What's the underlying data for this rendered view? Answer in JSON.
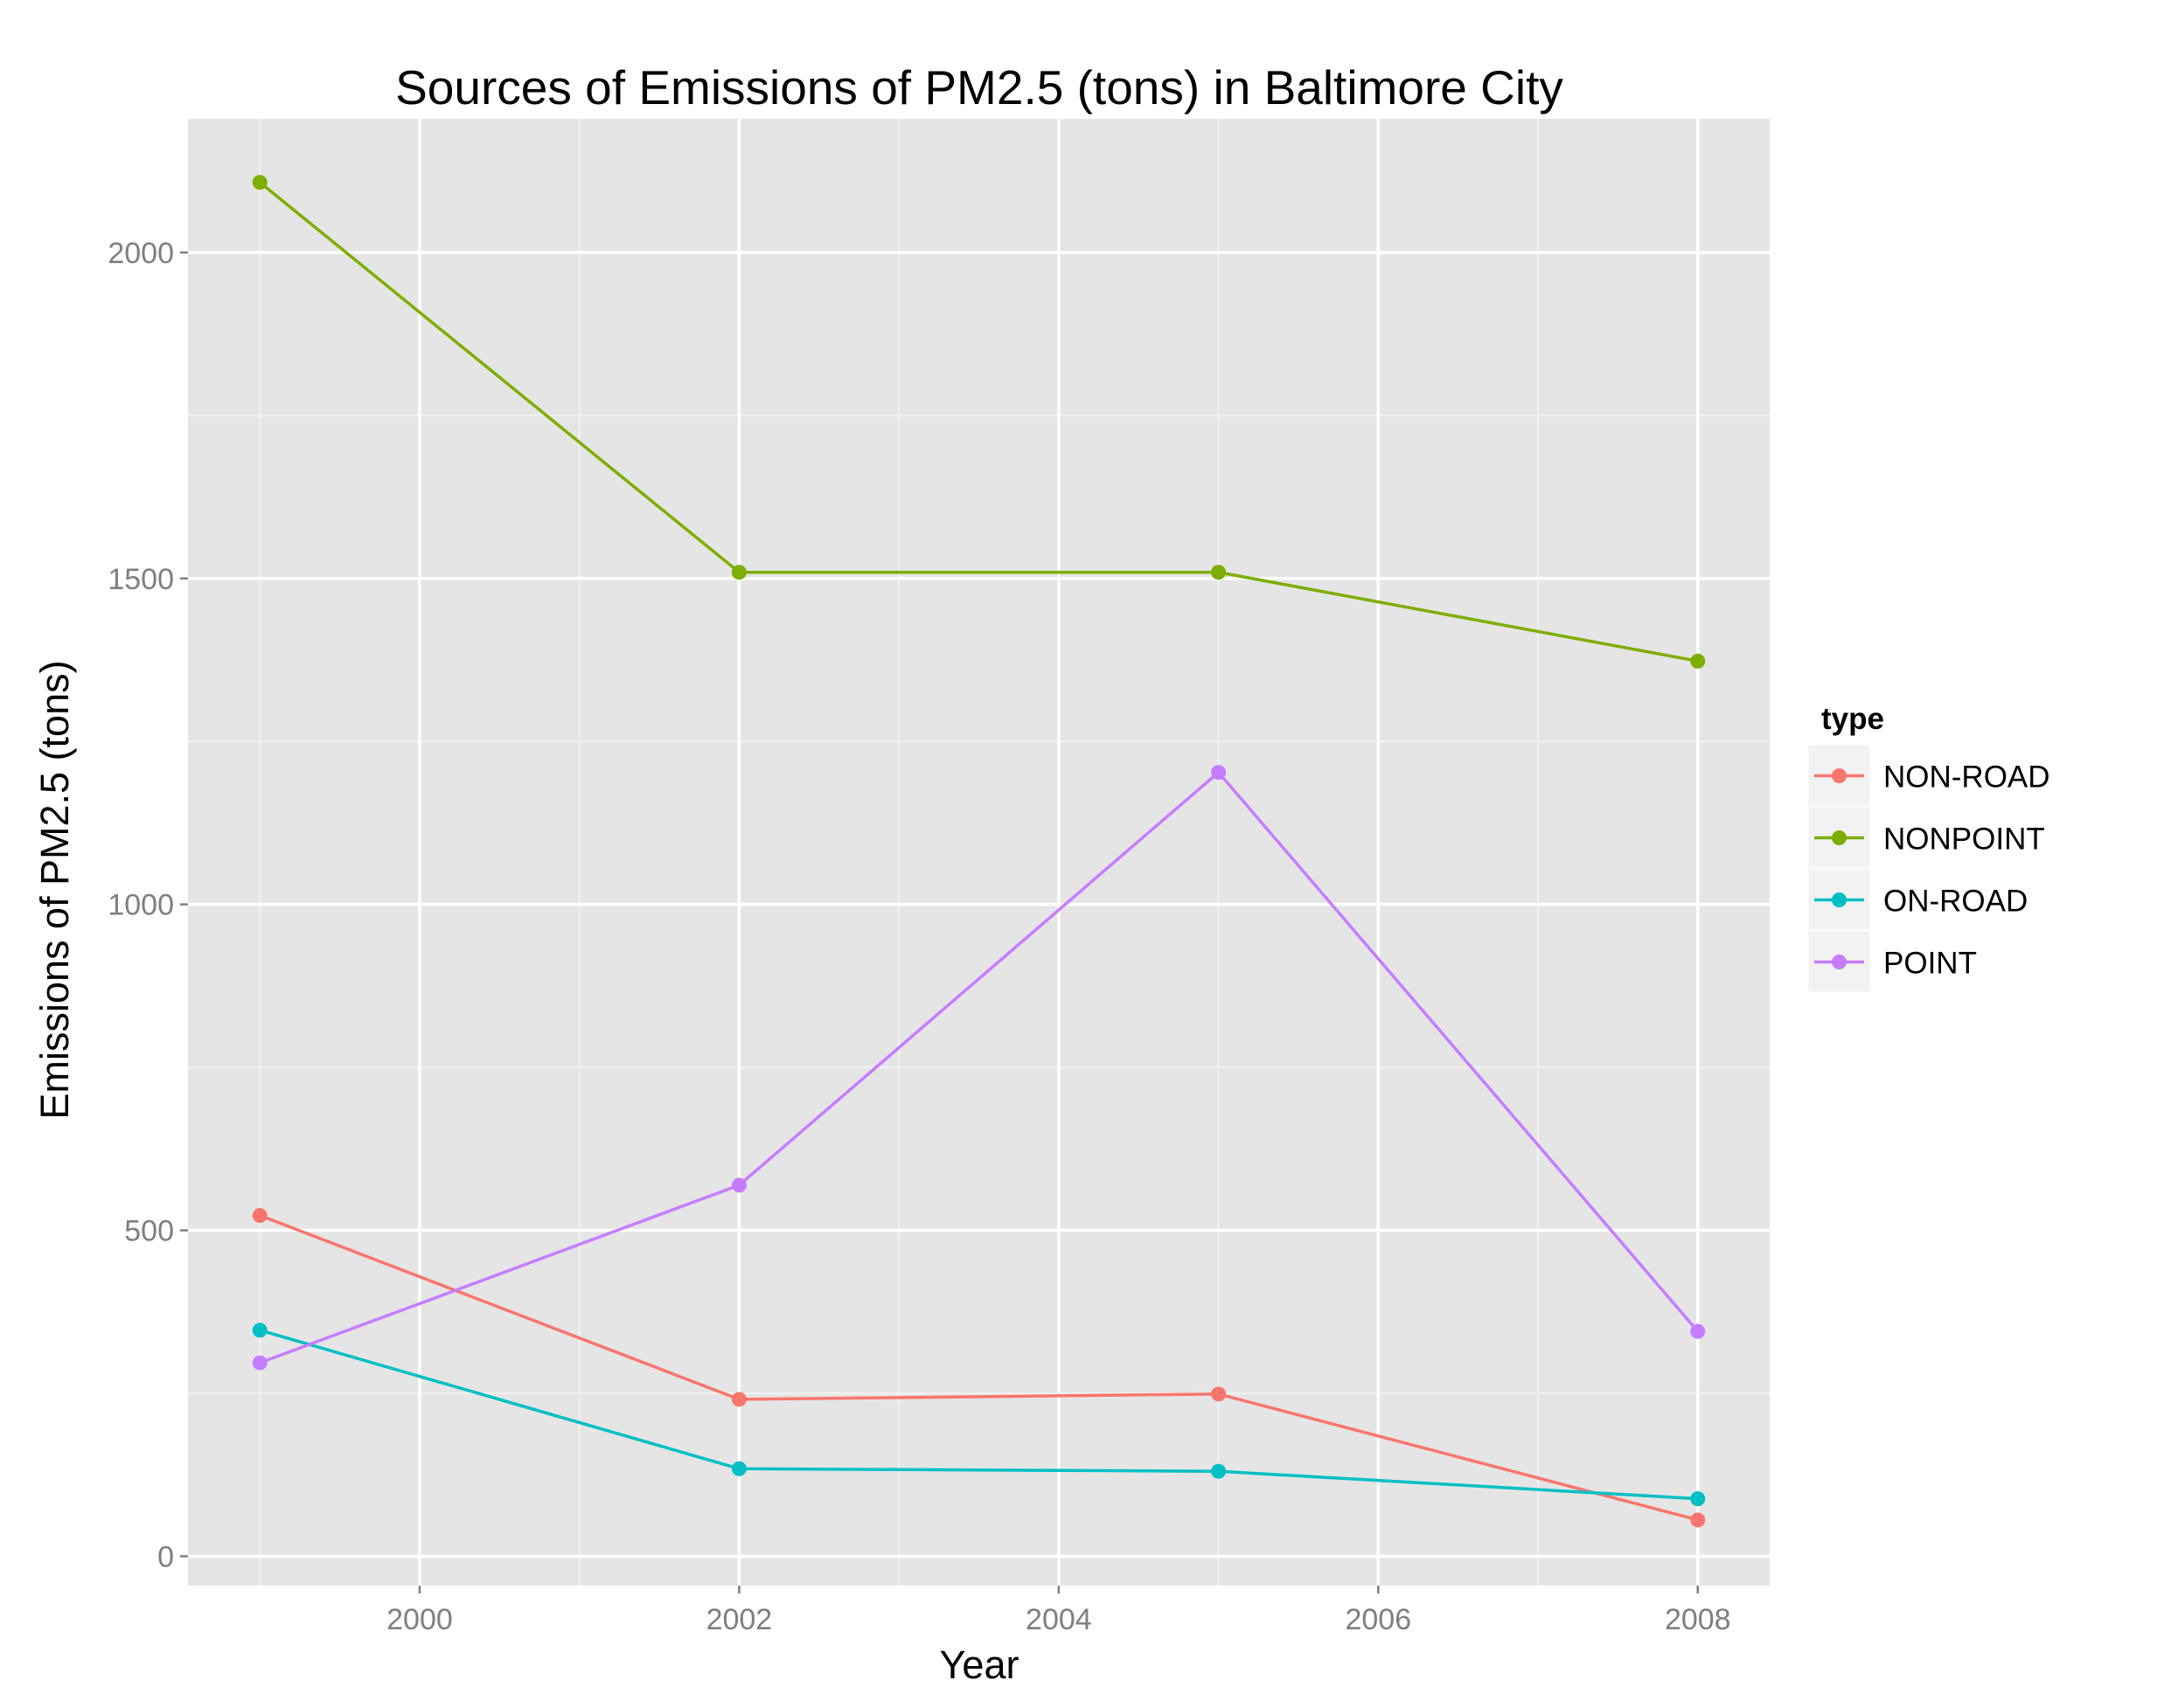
{
  "chart_data": {
    "type": "line",
    "title": "Sources of Emissions of PM2.5 (tons) in Baltimore City",
    "xlabel": "Year",
    "ylabel": "Emissions of PM2.5 (tons)",
    "x": [
      1999,
      2002,
      2005,
      2008
    ],
    "xlim": [
      1998.55,
      2008.45
    ],
    "ylim": [
      -45,
      2205
    ],
    "x_ticks": [
      "2000",
      "2002",
      "2004",
      "2006",
      "2008"
    ],
    "y_ticks": [
      "0",
      "500",
      "1000",
      "1500",
      "2000"
    ],
    "grid": true,
    "background": "#e5e5e5",
    "legend": {
      "title": "type",
      "position": "right"
    },
    "series": [
      {
        "name": "NON-ROAD",
        "color": "#f8766d",
        "values": [
          522.9,
          240.8,
          248.9,
          55.8
        ]
      },
      {
        "name": "NONPOINT",
        "color": "#7cae00",
        "values": [
          2107.6,
          1509.5,
          1509.5,
          1373.2
        ]
      },
      {
        "name": "ON-ROAD",
        "color": "#00bfc4",
        "values": [
          346.8,
          134.3,
          130.4,
          88.3
        ]
      },
      {
        "name": "POINT",
        "color": "#c77cff",
        "values": [
          296.8,
          569.3,
          1202.5,
          344.98
        ]
      }
    ]
  }
}
